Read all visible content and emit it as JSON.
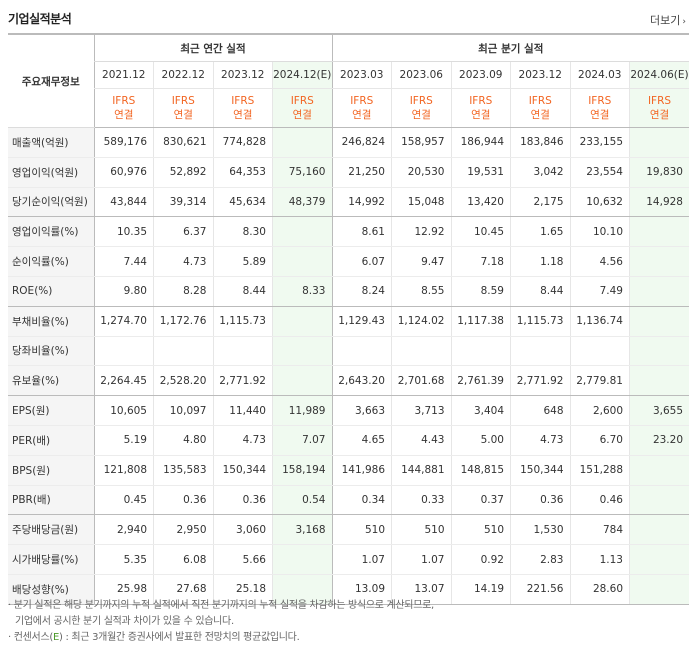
{
  "section_title": "기업실적분석",
  "more_label": "더보기",
  "corner_label": "주요재무정보",
  "groups": {
    "annual": "최근 연간 실적",
    "quarterly": "최근 분기 실적"
  },
  "annual_periods": [
    "2021.12",
    "2022.12",
    "2023.12",
    "2024.12(E)"
  ],
  "quarterly_periods": [
    "2023.03",
    "2023.06",
    "2023.09",
    "2023.12",
    "2024.03",
    "2024.06(E)"
  ],
  "ifrs_line1": "IFRS",
  "ifrs_line2": "연결",
  "rows": [
    {
      "label": "매출액(억원)",
      "values": [
        "589,176",
        "830,621",
        "774,828",
        "",
        "246,824",
        "158,957",
        "186,944",
        "183,846",
        "233,155",
        ""
      ]
    },
    {
      "label": "영업이익(억원)",
      "values": [
        "60,976",
        "52,892",
        "64,353",
        "75,160",
        "21,250",
        "20,530",
        "19,531",
        "3,042",
        "23,554",
        "19,830"
      ]
    },
    {
      "label": "당기순이익(억원)",
      "values": [
        "43,844",
        "39,314",
        "45,634",
        "48,379",
        "14,992",
        "15,048",
        "13,420",
        "2,175",
        "10,632",
        "14,928"
      ]
    },
    {
      "label": "영업이익률(%)",
      "values": [
        "10.35",
        "6.37",
        "8.30",
        "",
        "8.61",
        "12.92",
        "10.45",
        "1.65",
        "10.10",
        ""
      ]
    },
    {
      "label": "순이익률(%)",
      "values": [
        "7.44",
        "4.73",
        "5.89",
        "",
        "6.07",
        "9.47",
        "7.18",
        "1.18",
        "4.56",
        ""
      ]
    },
    {
      "label": "ROE(%)",
      "values": [
        "9.80",
        "8.28",
        "8.44",
        "8.33",
        "8.24",
        "8.55",
        "8.59",
        "8.44",
        "7.49",
        ""
      ]
    },
    {
      "label": "부채비율(%)",
      "values": [
        "1,274.70",
        "1,172.76",
        "1,115.73",
        "",
        "1,129.43",
        "1,124.02",
        "1,117.38",
        "1,115.73",
        "1,136.74",
        ""
      ]
    },
    {
      "label": "당좌비율(%)",
      "values": [
        "",
        "",
        "",
        "",
        "",
        "",
        "",
        "",
        "",
        ""
      ]
    },
    {
      "label": "유보율(%)",
      "values": [
        "2,264.45",
        "2,528.20",
        "2,771.92",
        "",
        "2,643.20",
        "2,701.68",
        "2,761.39",
        "2,771.92",
        "2,779.81",
        ""
      ]
    },
    {
      "label": "EPS(원)",
      "values": [
        "10,605",
        "10,097",
        "11,440",
        "11,989",
        "3,663",
        "3,713",
        "3,404",
        "648",
        "2,600",
        "3,655"
      ]
    },
    {
      "label": "PER(배)",
      "values": [
        "5.19",
        "4.80",
        "4.73",
        "7.07",
        "4.65",
        "4.43",
        "5.00",
        "4.73",
        "6.70",
        "23.20"
      ]
    },
    {
      "label": "BPS(원)",
      "values": [
        "121,808",
        "135,583",
        "150,344",
        "158,194",
        "141,986",
        "144,881",
        "148,815",
        "150,344",
        "151,288",
        ""
      ]
    },
    {
      "label": "PBR(배)",
      "values": [
        "0.45",
        "0.36",
        "0.36",
        "0.54",
        "0.34",
        "0.33",
        "0.37",
        "0.36",
        "0.46",
        ""
      ]
    },
    {
      "label": "주당배당금(원)",
      "values": [
        "2,940",
        "2,950",
        "3,060",
        "3,168",
        "510",
        "510",
        "510",
        "1,530",
        "784",
        ""
      ]
    },
    {
      "label": "시가배당률(%)",
      "values": [
        "5.35",
        "6.08",
        "5.66",
        "",
        "1.07",
        "1.07",
        "0.92",
        "2.83",
        "1.13",
        ""
      ]
    },
    {
      "label": "배당성향(%)",
      "values": [
        "25.98",
        "27.68",
        "25.18",
        "",
        "13.09",
        "13.07",
        "14.19",
        "221.56",
        "28.60",
        ""
      ]
    }
  ],
  "group_end_rows": [
    2,
    5,
    8,
    12,
    15
  ],
  "estimate_columns": [
    3,
    9
  ],
  "footnotes": {
    "line1": "· 분기 실적은 해당 분기까지의 누적 실적에서 직전 분기까지의 누적 실적을 차감하는 방식으로 계산되므로,",
    "line2": "기업에서 공시한 분기 실적과 차이가 있을 수 있습니다.",
    "line3_prefix": "· 컨센서스(",
    "line3_e": "E",
    "line3_suffix": ") : 최근 3개월간 증권사에서 발표한 전망치의 평균값입니다."
  }
}
